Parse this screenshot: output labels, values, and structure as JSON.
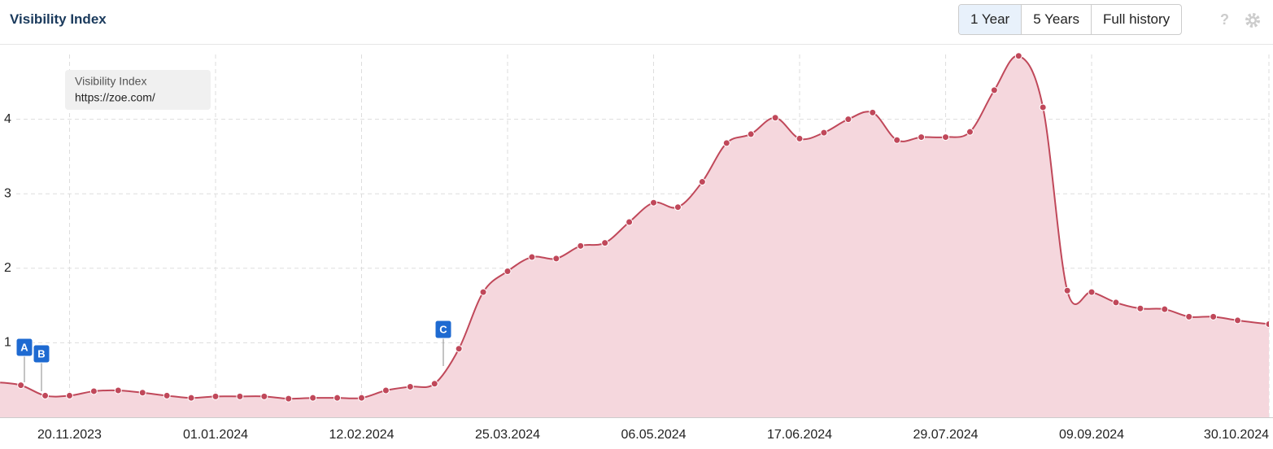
{
  "controls": {
    "buttons": [
      "1 Year",
      "5 Years",
      "Full history"
    ],
    "help": "?"
  },
  "chart_data": {
    "type": "area",
    "title": "Visibility Index",
    "x": [
      "30.10.2023",
      "06.11.2023",
      "13.11.2023",
      "20.11.2023",
      "27.11.2023",
      "04.12.2023",
      "11.12.2023",
      "18.12.2023",
      "25.12.2023",
      "01.01.2024",
      "08.01.2024",
      "15.01.2024",
      "22.01.2024",
      "29.01.2024",
      "05.02.2024",
      "12.02.2024",
      "19.02.2024",
      "26.02.2024",
      "04.03.2024",
      "11.03.2024",
      "18.03.2024",
      "25.03.2024",
      "01.04.2024",
      "08.04.2024",
      "15.04.2024",
      "22.04.2024",
      "29.04.2024",
      "06.05.2024",
      "13.05.2024",
      "20.05.2024",
      "27.05.2024",
      "03.06.2024",
      "10.06.2024",
      "17.06.2024",
      "24.06.2024",
      "01.07.2024",
      "08.07.2024",
      "15.07.2024",
      "22.07.2024",
      "29.07.2024",
      "05.08.2024",
      "12.08.2024",
      "19.08.2024",
      "26.08.2024",
      "02.09.2024",
      "09.09.2024",
      "16.09.2024",
      "23.09.2024",
      "30.09.2024",
      "07.10.2024",
      "14.10.2024",
      "21.10.2024",
      "30.10.2024"
    ],
    "series": [
      {
        "name": "https://zoe.com/",
        "color": "#c0485a",
        "values": [
          0.47,
          0.43,
          0.29,
          0.29,
          0.35,
          0.36,
          0.33,
          0.29,
          0.26,
          0.28,
          0.28,
          0.28,
          0.25,
          0.26,
          0.26,
          0.26,
          0.36,
          0.41,
          0.45,
          0.92,
          1.68,
          1.96,
          2.15,
          2.13,
          2.3,
          2.34,
          2.62,
          2.88,
          2.82,
          3.16,
          3.68,
          3.8,
          4.02,
          3.74,
          3.82,
          4.0,
          4.09,
          3.72,
          3.76,
          3.76,
          3.83,
          4.39,
          4.85,
          4.16,
          1.7,
          1.68,
          1.54,
          1.46,
          1.45,
          1.35,
          1.35,
          1.3,
          1.25
        ]
      }
    ],
    "xlim": [
      "31.10.2023",
      "30.10.2024"
    ],
    "xticks": [
      "20.11.2023",
      "01.01.2024",
      "12.02.2024",
      "25.03.2024",
      "06.05.2024",
      "17.06.2024",
      "29.07.2024",
      "09.09.2024",
      "30.10.2024"
    ],
    "ylim": [
      0,
      5
    ],
    "yticks": [
      1,
      2,
      3,
      4
    ],
    "grid": true,
    "events": [
      "A",
      "B",
      "C"
    ]
  }
}
